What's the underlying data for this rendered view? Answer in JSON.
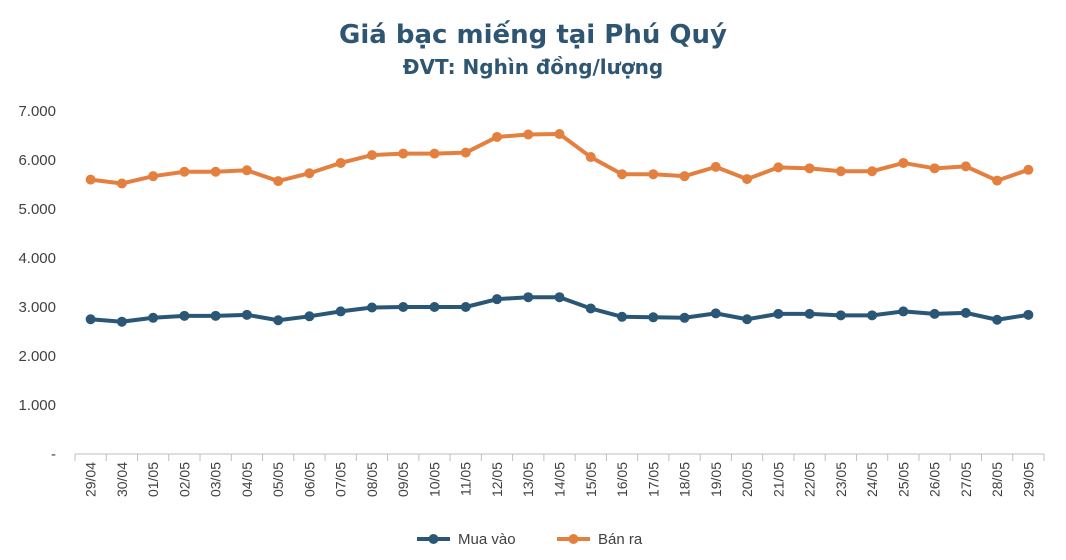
{
  "chart_data": {
    "type": "line",
    "title": "Giá bạc miếng tại Phú Quý",
    "subtitle": "ĐVT: Nghìn đồng/lượng",
    "categories": [
      "29/04",
      "30/04",
      "01/05",
      "02/05",
      "03/05",
      "04/05",
      "05/05",
      "06/05",
      "07/05",
      "08/05",
      "09/05",
      "10/05",
      "11/05",
      "12/05",
      "13/05",
      "14/05",
      "15/05",
      "16/05",
      "17/05",
      "18/05",
      "19/05",
      "20/05",
      "21/05",
      "22/05",
      "23/05",
      "24/05",
      "25/05",
      "26/05",
      "27/05",
      "28/05",
      "29/05"
    ],
    "ylim": [
      0,
      7000
    ],
    "yticks": [
      0,
      1000,
      2000,
      3000,
      4000,
      5000,
      6000,
      7000
    ],
    "ytick_labels": [
      "-",
      "1.000",
      "2.000",
      "3.000",
      "4.000",
      "5.000",
      "6.000",
      "7.000"
    ],
    "grid": false,
    "legend_position": "bottom",
    "series": [
      {
        "name": "Mua vào",
        "color": "#2b5776",
        "values": [
          2750,
          2700,
          2780,
          2820,
          2820,
          2840,
          2730,
          2810,
          2910,
          2990,
          3000,
          3000,
          3000,
          3160,
          3200,
          3200,
          2970,
          2800,
          2790,
          2780,
          2870,
          2750,
          2860,
          2860,
          2830,
          2830,
          2910,
          2860,
          2880,
          2740,
          2840
        ]
      },
      {
        "name": "Bán ra",
        "color": "#e4803f",
        "values": [
          5600,
          5520,
          5670,
          5760,
          5760,
          5790,
          5570,
          5730,
          5940,
          6100,
          6130,
          6130,
          6150,
          6470,
          6520,
          6530,
          6060,
          5710,
          5710,
          5670,
          5860,
          5610,
          5850,
          5830,
          5770,
          5770,
          5940,
          5830,
          5870,
          5580,
          5800
        ]
      }
    ]
  }
}
